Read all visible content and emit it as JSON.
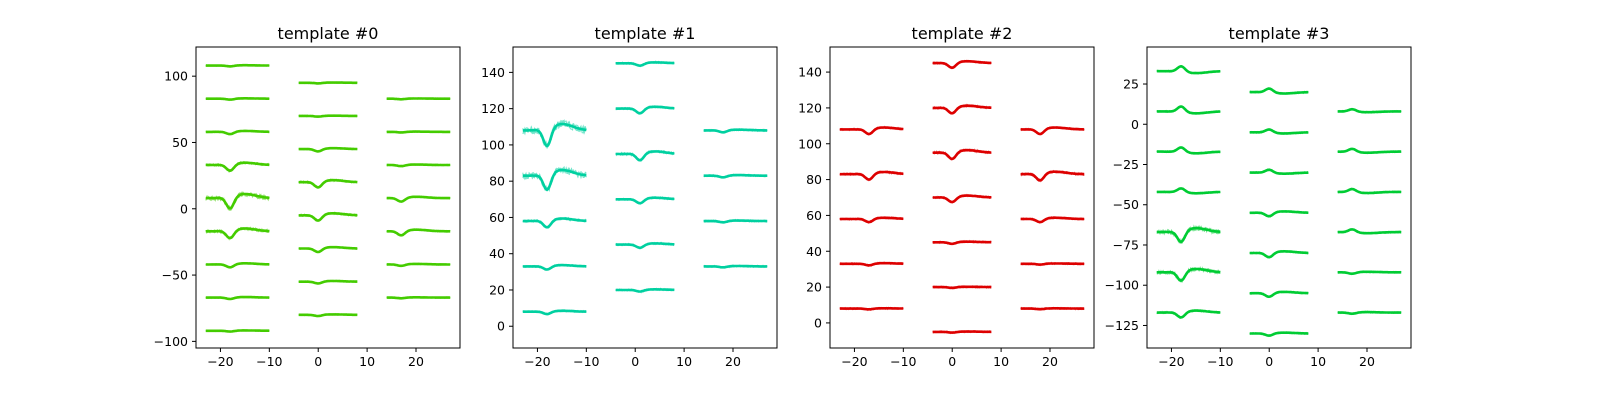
{
  "chart_data": [
    {
      "type": "line",
      "title": "template #0",
      "xlim": [
        -25,
        29
      ],
      "ylim": [
        -105,
        122
      ],
      "xticks": [
        -20,
        -10,
        0,
        10,
        20
      ],
      "yticks": [
        -100,
        -50,
        0,
        50,
        100
      ],
      "color": "#44cc00",
      "grid": false,
      "columns": [
        {
          "x_range": [
            -23,
            -10
          ],
          "offsets": [
            108,
            83,
            58,
            33,
            8,
            -17,
            -42,
            -67,
            -92
          ],
          "event_x": -18,
          "amplitudes": [
            0.7,
            0.8,
            2,
            5,
            9,
            6,
            2.5,
            1.2,
            0.7
          ]
        },
        {
          "x_range": [
            -4,
            8
          ],
          "offsets": [
            95,
            70,
            45,
            20,
            -5,
            -30,
            -55,
            -80
          ],
          "event_x": 0,
          "amplitudes": [
            0.5,
            0.6,
            2,
            4.5,
            4.5,
            3,
            1.5,
            1
          ]
        },
        {
          "x_range": [
            14,
            27
          ],
          "offsets": [
            83,
            58,
            33,
            8,
            -17,
            -42,
            -67
          ],
          "event_x": 17,
          "amplitudes": [
            0.5,
            0.5,
            1,
            3,
            3.5,
            1.2,
            0.6
          ]
        }
      ]
    },
    {
      "type": "line",
      "title": "template #1",
      "xlim": [
        -25,
        29
      ],
      "ylim": [
        -12,
        154
      ],
      "xticks": [
        -20,
        -10,
        0,
        10,
        20
      ],
      "yticks": [
        0,
        20,
        40,
        60,
        80,
        100,
        120,
        140
      ],
      "color": "#00d0a0",
      "grid": false,
      "columns": [
        {
          "x_range": [
            -23,
            -10
          ],
          "offsets": [
            108,
            83,
            58,
            33,
            8
          ],
          "event_x": -18,
          "amplitudes": [
            10,
            9,
            4,
            2,
            1.5
          ]
        },
        {
          "x_range": [
            -4,
            8
          ],
          "offsets": [
            145,
            120,
            95,
            70,
            45,
            20
          ],
          "event_x": 1,
          "amplitudes": [
            1.5,
            3,
            4,
            2.5,
            2,
            1
          ]
        },
        {
          "x_range": [
            14,
            27
          ],
          "offsets": [
            108,
            83,
            58,
            33
          ],
          "event_x": 18,
          "amplitudes": [
            1.2,
            1,
            0.8,
            0.6
          ]
        }
      ]
    },
    {
      "type": "line",
      "title": "template #2",
      "xlim": [
        -25,
        29
      ],
      "ylim": [
        -14,
        154
      ],
      "xticks": [
        -20,
        -10,
        0,
        10,
        20
      ],
      "yticks": [
        0,
        20,
        40,
        60,
        80,
        100,
        120,
        140
      ],
      "color": "#dd0000",
      "grid": false,
      "columns": [
        {
          "x_range": [
            -23,
            -10
          ],
          "offsets": [
            108,
            83,
            58,
            33,
            8
          ],
          "event_x": -17,
          "amplitudes": [
            3,
            3.5,
            2,
            1,
            0.5
          ]
        },
        {
          "x_range": [
            -4,
            8
          ],
          "offsets": [
            145,
            120,
            95,
            70,
            45,
            20,
            -5
          ],
          "event_x": 0,
          "amplitudes": [
            3,
            3.5,
            4,
            3,
            1,
            0.5,
            0.5
          ]
        },
        {
          "x_range": [
            14,
            27
          ],
          "offsets": [
            108,
            83,
            58,
            33,
            8
          ],
          "event_x": 18,
          "amplitudes": [
            3,
            4,
            2,
            0.5,
            0.4
          ]
        }
      ]
    },
    {
      "type": "line",
      "title": "template #3",
      "xlim": [
        -25,
        29
      ],
      "ylim": [
        -139,
        48
      ],
      "xticks": [
        -20,
        -10,
        0,
        10,
        20
      ],
      "yticks": [
        -125,
        -100,
        -75,
        -50,
        -25,
        0,
        25
      ],
      "color": "#00cc33",
      "grid": false,
      "columns": [
        {
          "x_range": [
            -23,
            -10
          ],
          "offsets": [
            33,
            8,
            -17,
            -42,
            -67,
            -92,
            -117
          ],
          "event_x": -18,
          "amplitudes": [
            -3.5,
            -3.5,
            -3,
            -2.5,
            7,
            6,
            3.5
          ]
        },
        {
          "x_range": [
            -4,
            8
          ],
          "offsets": [
            20,
            -5,
            -30,
            -55,
            -80,
            -105,
            -130
          ],
          "event_x": 0,
          "amplitudes": [
            -2.5,
            -2,
            -2,
            2.5,
            3,
            2.5,
            1.5
          ]
        },
        {
          "x_range": [
            14,
            27
          ],
          "offsets": [
            8,
            -17,
            -42,
            -67,
            -92,
            -117
          ],
          "event_x": 17,
          "amplitudes": [
            -1.5,
            -2,
            -2,
            -2,
            1,
            0.8
          ]
        }
      ]
    }
  ]
}
